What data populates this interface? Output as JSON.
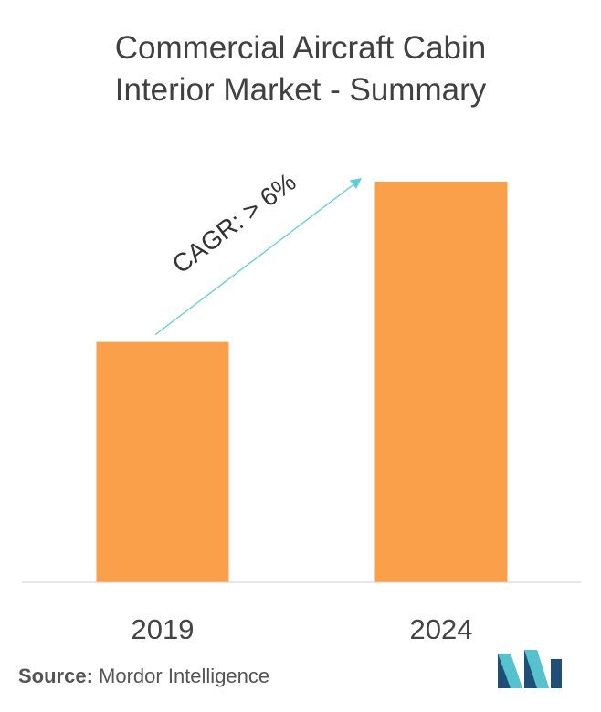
{
  "chart_data": {
    "type": "bar",
    "title": "Commercial Aircraft Cabin Interior Market - Summary",
    "title_lines": [
      "Commercial Aircraft Cabin",
      "Interior Market - Summary"
    ],
    "categories": [
      "2019",
      "2024"
    ],
    "values": [
      60,
      100
    ],
    "ylim": [
      0,
      100
    ],
    "xlabel": "",
    "ylabel": "",
    "grid": false,
    "annotation": "CAGR: > 6%",
    "colors": {
      "bar": "#fba04a",
      "arrow": "#5ccfd6",
      "axis": "#cccccc",
      "text": "#444444"
    }
  },
  "footer": {
    "source_label": "Source:",
    "source_value": " Mordor Intelligence",
    "logo_icon": "mordor-intelligence-logo-icon"
  }
}
